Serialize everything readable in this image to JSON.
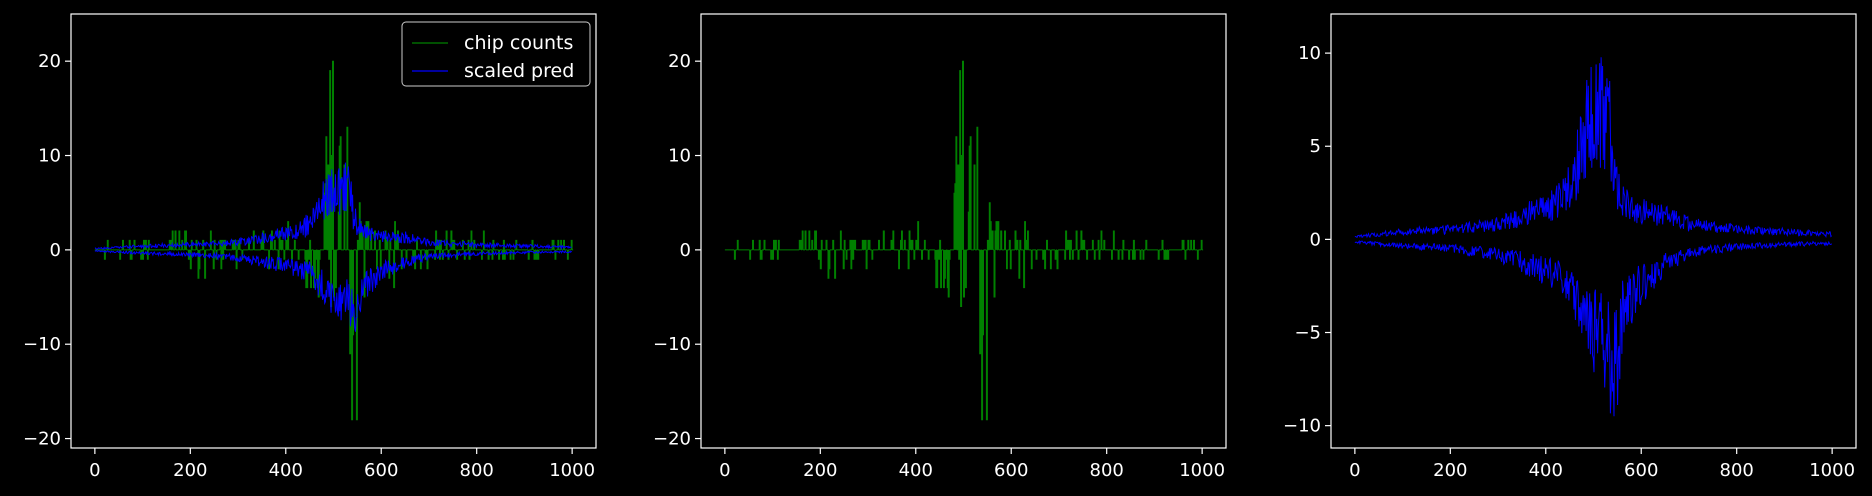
{
  "figure": {
    "background": "#000000",
    "axes_color": "#ffffff",
    "text_color": "#ffffff"
  },
  "chart_data": [
    {
      "type": "line",
      "title": "",
      "xlabel": "",
      "ylabel": "",
      "xlim": [
        -50,
        1050
      ],
      "ylim": [
        -21,
        25
      ],
      "xticks": [
        0,
        200,
        400,
        600,
        800,
        1000
      ],
      "yticks": [
        -20,
        -10,
        0,
        10,
        20
      ],
      "legend": {
        "placement": "upper right",
        "entries": [
          "chip counts",
          "scaled pred"
        ]
      },
      "grid": false,
      "series": [
        {
          "name": "chip counts",
          "color": "#008000",
          "style": "discrete counts, lines between 0 and peak values",
          "x": [
            0,
            100,
            180,
            200,
            300,
            350,
            400,
            430,
            460,
            480,
            490,
            500,
            510,
            520,
            530,
            540,
            550,
            560,
            580,
            600,
            620,
            650,
            700,
            800,
            900,
            1000
          ],
          "y_upper": [
            1,
            1,
            3,
            2,
            2,
            2,
            3,
            5,
            9,
            11,
            19,
            23,
            15,
            18,
            13,
            9,
            8,
            4,
            3,
            3,
            3,
            2,
            2,
            2,
            1,
            1
          ],
          "y_lower": [
            -1,
            -1,
            -2,
            -4,
            -2,
            -2,
            -3,
            -3,
            -5,
            -8,
            -13,
            -10,
            -9,
            -12,
            -16,
            -19,
            -18,
            -10,
            -6,
            -5,
            -4,
            -3,
            -2,
            -1,
            -1,
            -1
          ]
        },
        {
          "name": "scaled pred",
          "color": "#0000ff",
          "style": "continuous prediction",
          "x": [
            0,
            100,
            200,
            300,
            400,
            450,
            480,
            500,
            520,
            530,
            540,
            550,
            560,
            600,
            650,
            700,
            800,
            900,
            1000
          ],
          "y_upper": [
            0.2,
            0.6,
            0.8,
            1.2,
            2.5,
            4,
            8,
            10.5,
            10,
            11,
            6,
            4,
            3,
            2.2,
            2,
            1.2,
            0.8,
            0.6,
            0.4
          ],
          "y_lower": [
            -0.2,
            -0.5,
            -0.7,
            -1.2,
            -2.5,
            -3.5,
            -6,
            -7.5,
            -8,
            -9,
            -10,
            -9.5,
            -6,
            -3.5,
            -2,
            -1,
            -0.6,
            -0.4,
            -0.3
          ]
        }
      ]
    },
    {
      "type": "line",
      "title": "",
      "xlabel": "",
      "ylabel": "",
      "xlim": [
        -50,
        1050
      ],
      "ylim": [
        -21,
        25
      ],
      "xticks": [
        0,
        200,
        400,
        600,
        800,
        1000
      ],
      "yticks": [
        -20,
        -10,
        0,
        10,
        20
      ],
      "grid": false,
      "series": [
        {
          "color": "#008000",
          "style": "discrete counts, lines between 0 and peak values",
          "x": [
            0,
            100,
            180,
            200,
            300,
            350,
            400,
            430,
            460,
            480,
            490,
            500,
            510,
            520,
            530,
            540,
            550,
            560,
            580,
            600,
            620,
            650,
            700,
            800,
            900,
            1000
          ],
          "y_upper": [
            1,
            1,
            3,
            2,
            2,
            2,
            3,
            5,
            9,
            11,
            19,
            23,
            15,
            18,
            13,
            9,
            8,
            4,
            3,
            3,
            3,
            2,
            2,
            2,
            1,
            1
          ],
          "y_lower": [
            -1,
            -1,
            -2,
            -4,
            -2,
            -2,
            -3,
            -3,
            -5,
            -8,
            -13,
            -10,
            -9,
            -12,
            -16,
            -19,
            -18,
            -10,
            -6,
            -5,
            -4,
            -3,
            -2,
            -1,
            -1,
            -1
          ]
        }
      ]
    },
    {
      "type": "line",
      "title": "",
      "xlabel": "",
      "ylabel": "",
      "xlim": [
        -50,
        1050
      ],
      "ylim": [
        -11.2,
        12.1
      ],
      "xticks": [
        0,
        200,
        400,
        600,
        800,
        1000
      ],
      "yticks": [
        -10,
        -5,
        0,
        5,
        10
      ],
      "grid": false,
      "series": [
        {
          "color": "#0000ff",
          "style": "continuous prediction",
          "x": [
            0,
            100,
            200,
            300,
            400,
            450,
            480,
            500,
            520,
            530,
            540,
            550,
            560,
            600,
            650,
            700,
            800,
            900,
            1000
          ],
          "y_upper": [
            0.2,
            0.6,
            0.8,
            1.2,
            2.5,
            4,
            8,
            10.5,
            10,
            11,
            6,
            4,
            3,
            2.2,
            2,
            1.2,
            0.8,
            0.6,
            0.4
          ],
          "y_lower": [
            -0.2,
            -0.5,
            -0.7,
            -1.2,
            -2.5,
            -3.5,
            -6,
            -7.5,
            -8,
            -9,
            -10,
            -9.5,
            -6,
            -3.5,
            -2,
            -1,
            -0.6,
            -0.4,
            -0.3
          ]
        }
      ]
    }
  ]
}
